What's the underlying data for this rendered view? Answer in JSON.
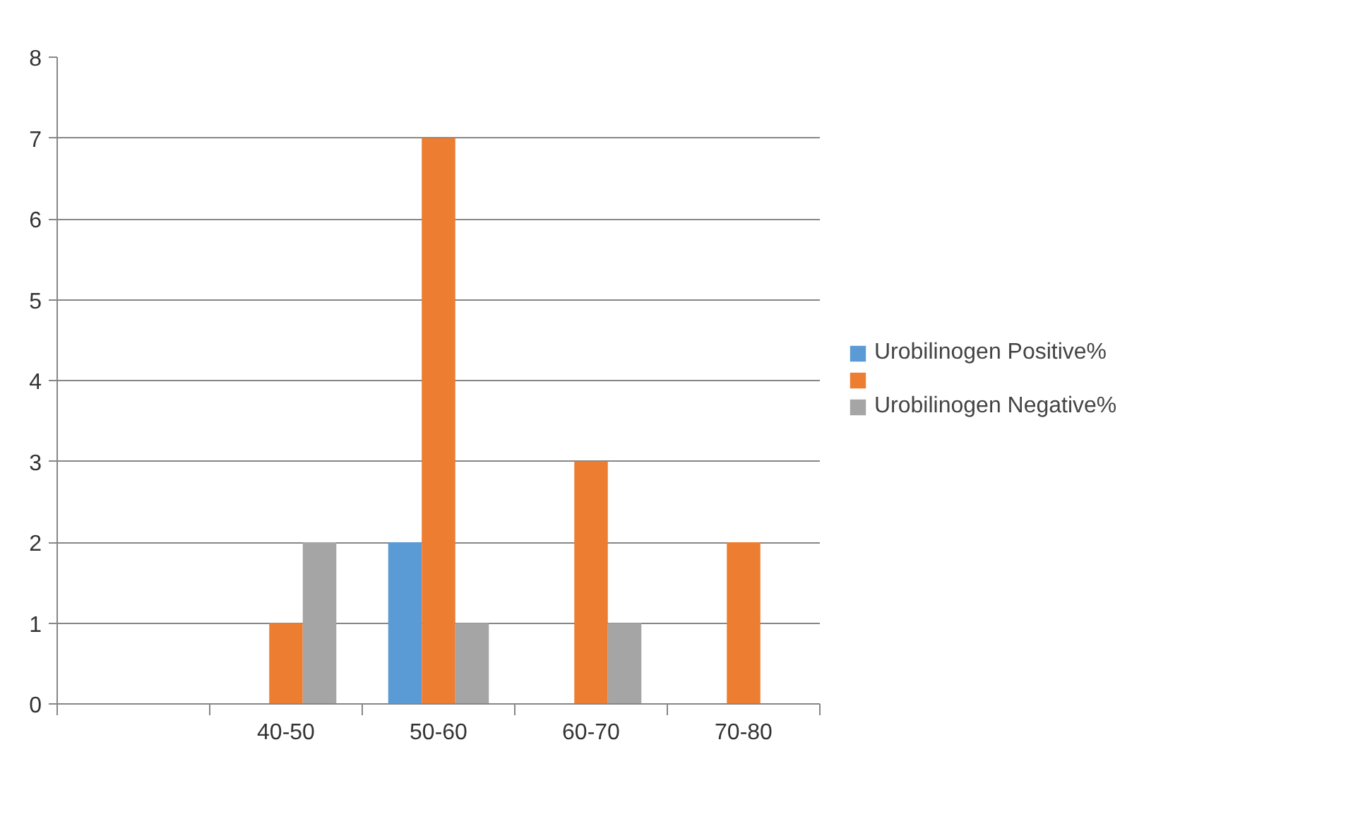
{
  "chart_data": {
    "type": "bar",
    "categories": [
      null,
      "40-50",
      "50-60",
      "60-70",
      "70-80"
    ],
    "series": [
      {
        "name": "Urobilinogen Positive%",
        "color": "#5b9bd5",
        "values": [
          null,
          null,
          2,
          null,
          null
        ]
      },
      {
        "color": "#ed7d31",
        "values": [
          null,
          1,
          7,
          3,
          2
        ]
      },
      {
        "name": "Urobilinogen Negative%",
        "color": "#a5a5a5",
        "values": [
          null,
          2,
          1,
          1,
          null
        ]
      }
    ],
    "ylim": [
      0,
      8
    ],
    "yticks": [
      0,
      1,
      2,
      3,
      4,
      5,
      6,
      7,
      8
    ],
    "grid": "y",
    "legend": "right"
  }
}
